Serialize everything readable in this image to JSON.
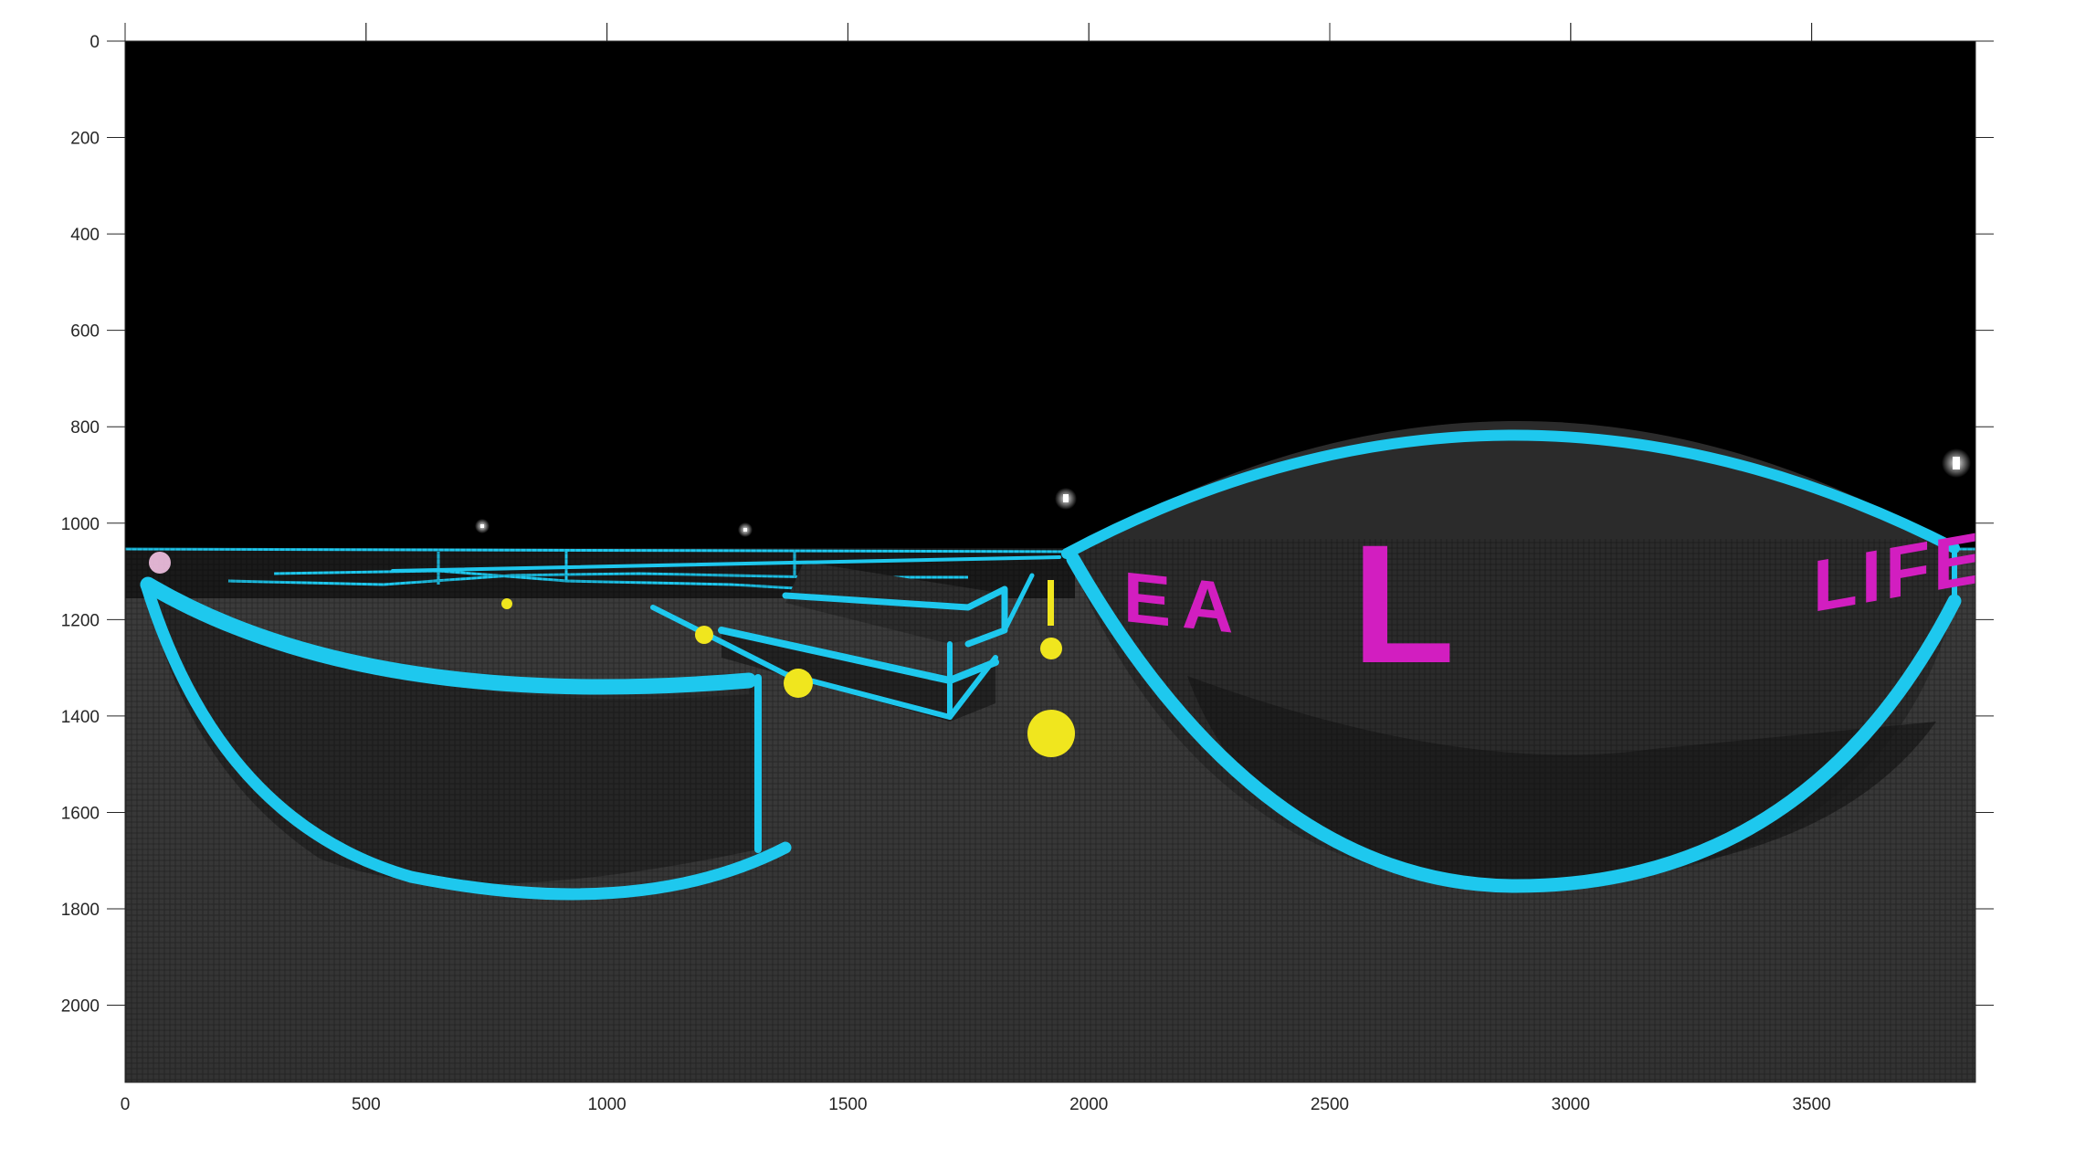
{
  "figure": {
    "xlim": [
      0,
      3840
    ],
    "ylim": [
      0,
      2160
    ],
    "y_direction": "reversed",
    "x_ticks": [
      "0",
      "500",
      "1000",
      "1500",
      "2000",
      "2500",
      "3000",
      "3500"
    ],
    "y_ticks": [
      "0",
      "200",
      "400",
      "600",
      "800",
      "1000",
      "1200",
      "1400",
      "1600",
      "1800",
      "2000"
    ],
    "image_text": {
      "letters_mid": "EA",
      "letter_big": "L",
      "letters_right": "LIFE"
    },
    "colors": {
      "sky": "#000000",
      "ground": "#3a3a3a",
      "neon_blue": "#1ec8ee",
      "neon_magenta": "#d21ec0",
      "light_yellow": "#f0e61e",
      "axis": "#262626"
    }
  }
}
